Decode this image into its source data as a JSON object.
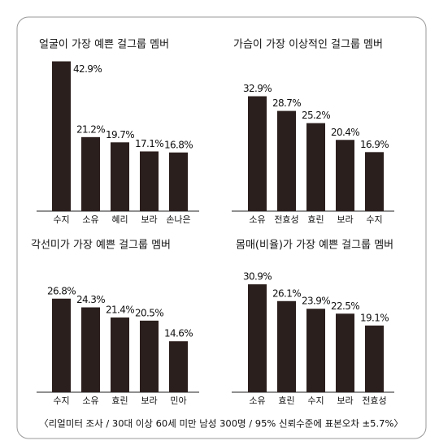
{
  "chart_data": [
    {
      "type": "bar",
      "title": "얼굴이 가장 예쁜 걸그룹 멤버",
      "categories": [
        "수지",
        "소유",
        "혜리",
        "보라",
        "손나은"
      ],
      "values": [
        42.9,
        21.2,
        19.7,
        17.1,
        16.8
      ],
      "value_labels": [
        "42.9%",
        "21.2%",
        "19.7%",
        "17.1%",
        "16.8%"
      ],
      "color": "#2b1f1d"
    },
    {
      "type": "bar",
      "title": "가슴이 가장 이상적인 걸그룹 멤버",
      "categories": [
        "소유",
        "전효성",
        "효린",
        "보라",
        "수지"
      ],
      "values": [
        32.9,
        28.7,
        25.2,
        20.4,
        16.9
      ],
      "value_labels": [
        "32.9%",
        "28.7%",
        "25.2%",
        "20.4%",
        "16.9%"
      ],
      "color": "#2b1f1d"
    },
    {
      "type": "bar",
      "title": "각선미가 가장 예쁜 걸그룹 멤버",
      "categories": [
        "수지",
        "소유",
        "효린",
        "보라",
        "민아"
      ],
      "values": [
        26.8,
        24.3,
        21.4,
        20.5,
        14.6
      ],
      "value_labels": [
        "26.8%",
        "24.3%",
        "21.4%",
        "20.5%",
        "14.6%"
      ],
      "color": "#2b1f1d"
    },
    {
      "type": "bar",
      "title": "몸매(비율)가 가장 예쁜 걸그룹 멤버",
      "categories": [
        "소유",
        "효린",
        "수지",
        "보라",
        "전효성"
      ],
      "values": [
        30.9,
        26.1,
        23.9,
        22.5,
        19.1
      ],
      "value_labels": [
        "30.9%",
        "26.1%",
        "23.9%",
        "22.5%",
        "19.1%"
      ],
      "color": "#2b1f1d"
    }
  ],
  "footnote": "〈리얼미터 조사 / 30대 이상 60세 미만 남성 300명 / 95% 신뢰수준에 표본오차 ±5.7%〉"
}
